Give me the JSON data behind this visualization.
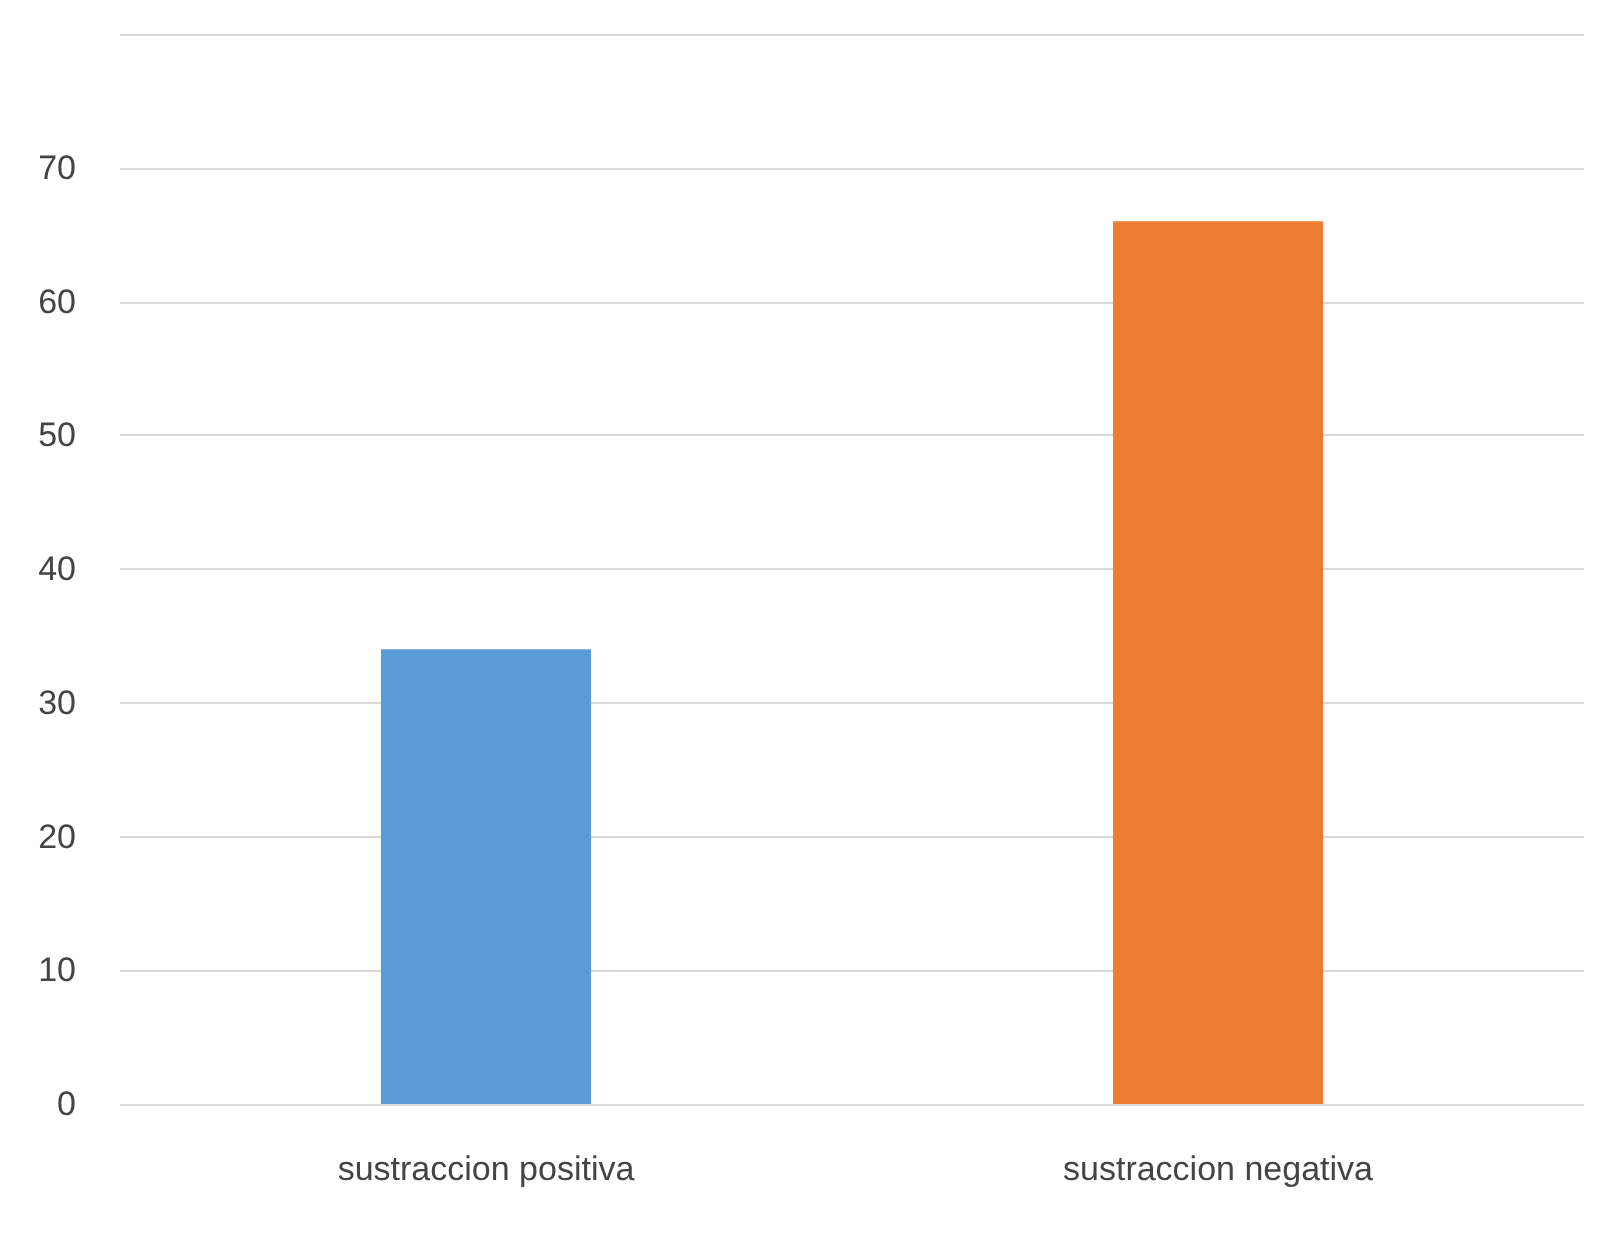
{
  "chart_data": {
    "type": "bar",
    "categories": [
      "sustraccion positiva",
      "sustraccion negativa"
    ],
    "values": [
      34,
      66
    ],
    "colors": [
      "#5b9bd5",
      "#ed7d31"
    ],
    "ylim": [
      0,
      80
    ],
    "yticks": [
      0,
      10,
      20,
      30,
      40,
      50,
      60,
      70,
      {
        "value": 80,
        "label": null
      }
    ],
    "grid": "y"
  }
}
